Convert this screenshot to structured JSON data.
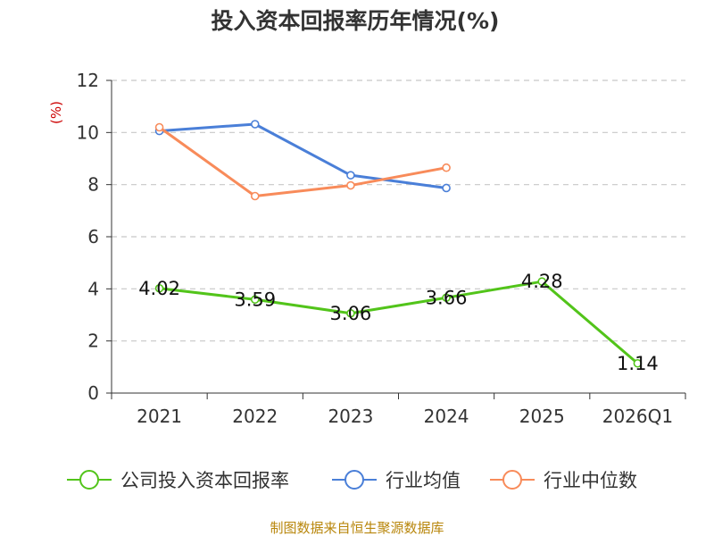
{
  "chart_data": {
    "type": "line",
    "title": "投入资本回报率历年情况(%)",
    "ylabel": "(%)",
    "xlabel": "",
    "categories": [
      "2021",
      "2022",
      "2023",
      "2024",
      "2025",
      "2026Q1"
    ],
    "ylim": [
      0,
      12
    ],
    "yticks": [
      "0",
      "2",
      "4",
      "6",
      "8",
      "10",
      "12"
    ],
    "grid": true,
    "legend_position": "bottom",
    "series": [
      {
        "name": "公司投入资本回报率",
        "color": "#52c41a",
        "values": [
          4.02,
          3.59,
          3.06,
          3.66,
          4.28,
          1.14
        ],
        "labels": [
          "4.02",
          "3.59",
          "3.06",
          "3.66",
          "4.28",
          "1.14"
        ]
      },
      {
        "name": "行业均值",
        "color": "#4a7fd8",
        "values": [
          10.06,
          10.32,
          8.36,
          7.87,
          null,
          null
        ]
      },
      {
        "name": "行业中位数",
        "color": "#f88b5a",
        "values": [
          10.2,
          7.56,
          7.97,
          8.65,
          null,
          null
        ]
      }
    ]
  },
  "source": "制图数据来自恒生聚源数据库"
}
